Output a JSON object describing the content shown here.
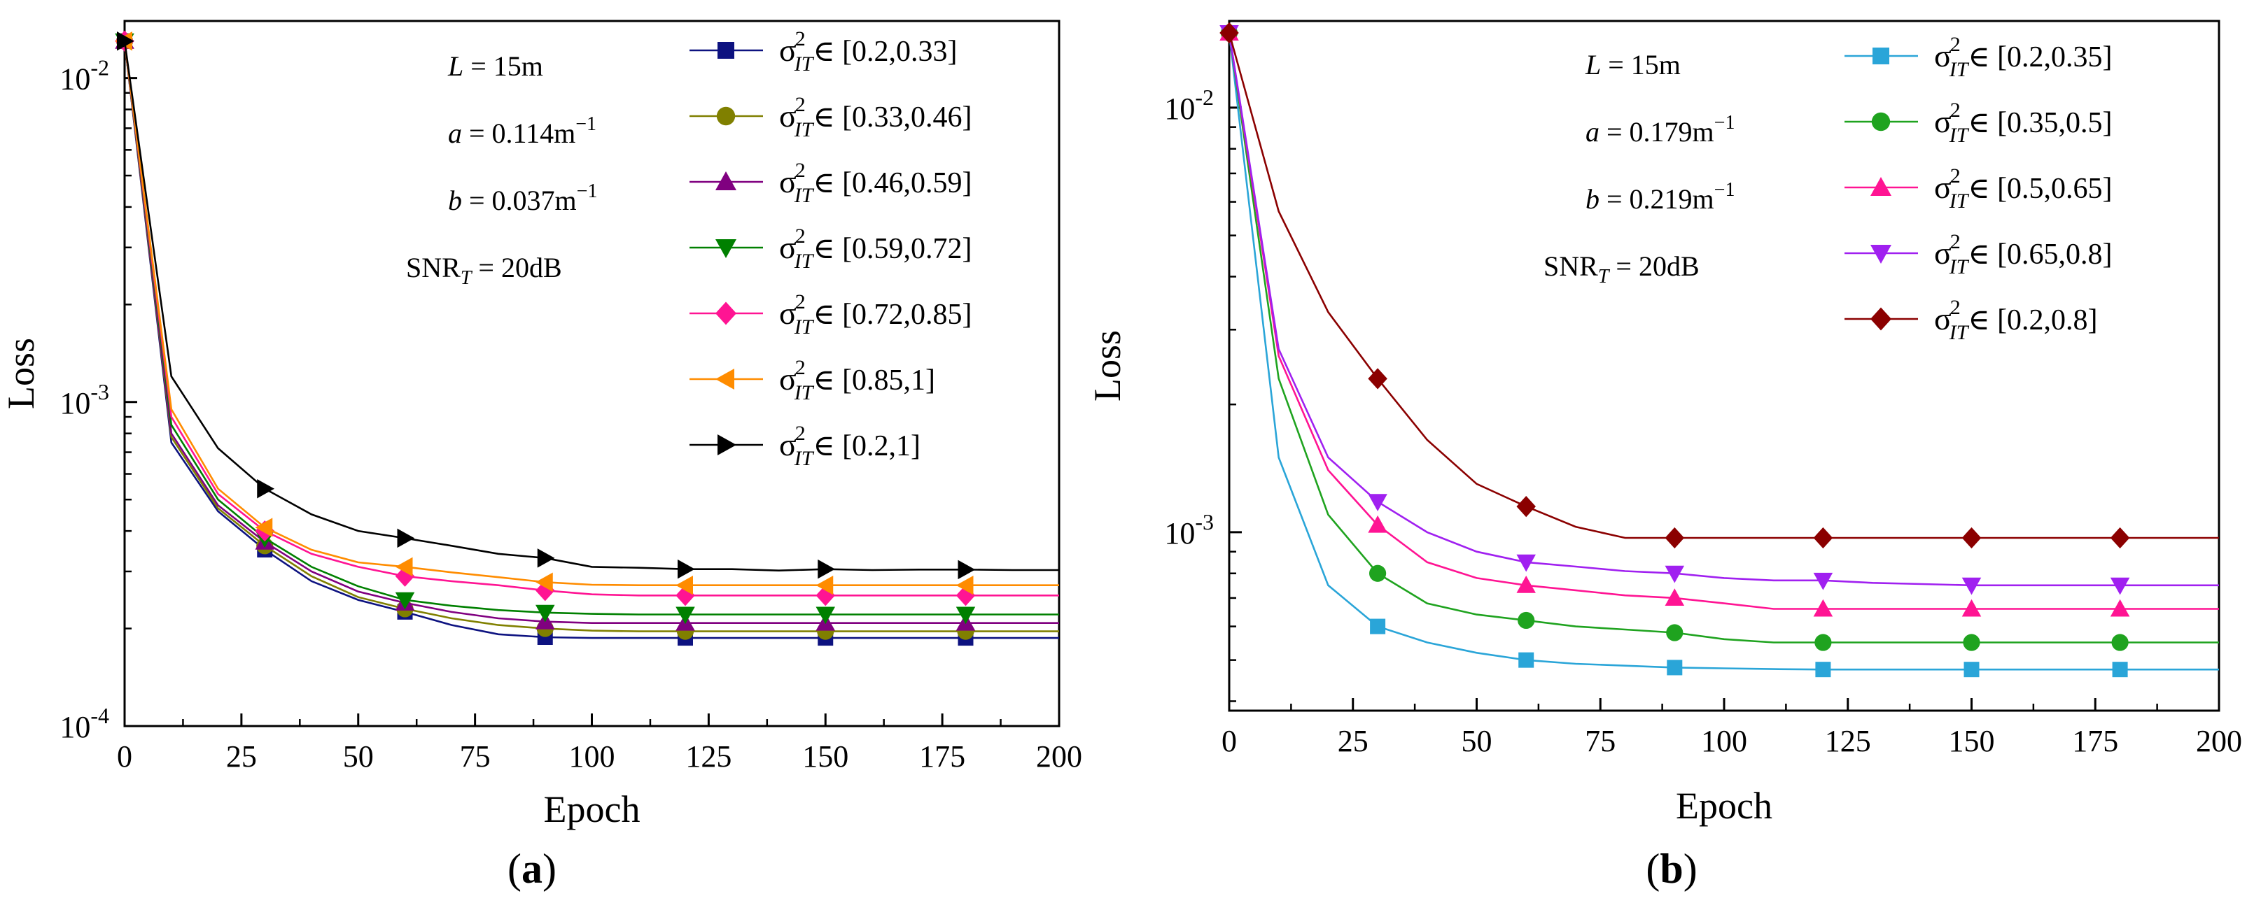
{
  "chart_data": [
    {
      "type": "line",
      "panel_label": "(a)",
      "panel_open": "(",
      "panel_letter": "a",
      "panel_close": ")",
      "xlabel": "Epoch",
      "ylabel": "Loss",
      "xlim": [
        0,
        200
      ],
      "ylim": [
        0.0001,
        0.015
      ],
      "yscale": "log",
      "grid": false,
      "legend_position": "top-right",
      "xticks": [
        "0",
        "25",
        "50",
        "75",
        "100",
        "125",
        "150",
        "175",
        "200"
      ],
      "yticks": [
        {
          "value": 0.0001,
          "base": "10",
          "exp": "-4"
        },
        {
          "value": 0.001,
          "base": "10",
          "exp": "-3"
        },
        {
          "value": 0.01,
          "base": "10",
          "exp": "-2"
        }
      ],
      "params": [
        {
          "pre": "",
          "var": "L",
          "sub": "",
          "post": " = 15m"
        },
        {
          "pre": "",
          "var": "a",
          "sub": "",
          "post": " = 0.114m",
          "sup": "−1"
        },
        {
          "pre": "",
          "var": "b",
          "sub": "",
          "post": " = 0.037m",
          "sup": "−1"
        },
        {
          "pre": "SNR",
          "var": "",
          "sub": "T",
          "post": " = 20dB"
        }
      ],
      "series": [
        {
          "name": "σ²IT∈ [0.2,0.33]",
          "range": "∈ [0.2,0.33]",
          "color": "#0d1280",
          "marker": "square",
          "x": [
            0,
            10,
            20,
            30,
            40,
            50,
            60,
            70,
            80,
            90,
            100,
            110,
            120,
            130,
            140,
            150,
            160,
            170,
            180,
            190,
            200
          ],
          "values": [
            0.013,
            0.00075,
            0.00046,
            0.00035,
            0.00028,
            0.000245,
            0.000225,
            0.000205,
            0.000192,
            0.000188,
            0.000187,
            0.000187,
            0.000187,
            0.000187,
            0.000187,
            0.000187,
            0.000187,
            0.000187,
            0.000187,
            0.000187,
            0.000187
          ],
          "marker_x": [
            0,
            30,
            60,
            90,
            120,
            150,
            180
          ]
        },
        {
          "name": "σ²IT∈ [0.33,0.46]",
          "range": "∈ [0.33,0.46]",
          "color": "#808000",
          "marker": "circle",
          "x": [
            0,
            10,
            20,
            30,
            40,
            50,
            60,
            70,
            80,
            90,
            100,
            110,
            120,
            130,
            140,
            150,
            160,
            170,
            180,
            190,
            200
          ],
          "values": [
            0.013,
            0.00078,
            0.00047,
            0.00036,
            0.00029,
            0.00025,
            0.00023,
            0.000215,
            0.000205,
            0.0002,
            0.000197,
            0.000196,
            0.000196,
            0.000196,
            0.000196,
            0.000196,
            0.000196,
            0.000196,
            0.000196,
            0.000196,
            0.000196
          ],
          "marker_x": [
            0,
            30,
            60,
            90,
            120,
            150,
            180
          ]
        },
        {
          "name": "σ²IT∈ [0.46,0.59]",
          "range": "∈ [0.46,0.59]",
          "color": "#800080",
          "marker": "triangle-up",
          "x": [
            0,
            10,
            20,
            30,
            40,
            50,
            60,
            70,
            80,
            90,
            100,
            110,
            120,
            130,
            140,
            150,
            160,
            170,
            180,
            190,
            200
          ],
          "values": [
            0.013,
            0.0008,
            0.00048,
            0.00037,
            0.0003,
            0.00026,
            0.00024,
            0.000225,
            0.000215,
            0.00021,
            0.000208,
            0.000208,
            0.000208,
            0.000208,
            0.000208,
            0.000208,
            0.000208,
            0.000208,
            0.000208,
            0.000208,
            0.000208
          ],
          "marker_x": [
            0,
            30,
            60,
            90,
            120,
            150,
            180
          ]
        },
        {
          "name": "σ²IT∈ [0.59,0.72]",
          "range": "∈ [0.59,0.72]",
          "color": "#008000",
          "marker": "triangle-down",
          "x": [
            0,
            10,
            20,
            30,
            40,
            50,
            60,
            70,
            80,
            90,
            100,
            110,
            120,
            130,
            140,
            150,
            160,
            170,
            180,
            190,
            200
          ],
          "values": [
            0.013,
            0.00085,
            0.0005,
            0.00038,
            0.00031,
            0.00027,
            0.000245,
            0.000235,
            0.000228,
            0.000224,
            0.000222,
            0.000221,
            0.000221,
            0.000221,
            0.000221,
            0.000221,
            0.000221,
            0.000221,
            0.000221,
            0.000221,
            0.000221
          ],
          "marker_x": [
            0,
            30,
            60,
            90,
            120,
            150,
            180
          ]
        },
        {
          "name": "σ²IT∈ [0.72,0.85]",
          "range": "∈ [0.72,0.85]",
          "color": "#ff1493",
          "marker": "diamond",
          "x": [
            0,
            10,
            20,
            30,
            40,
            50,
            60,
            70,
            80,
            90,
            100,
            110,
            120,
            130,
            140,
            150,
            160,
            170,
            180,
            190,
            200
          ],
          "values": [
            0.013,
            0.0009,
            0.00052,
            0.0004,
            0.00034,
            0.00031,
            0.00029,
            0.00028,
            0.000272,
            0.000262,
            0.000255,
            0.000253,
            0.000253,
            0.000253,
            0.000253,
            0.000253,
            0.000253,
            0.000253,
            0.000253,
            0.000253,
            0.000253
          ],
          "marker_x": [
            0,
            30,
            60,
            90,
            120,
            150,
            180
          ]
        },
        {
          "name": "σ²IT∈ [0.85,1]",
          "range": "∈ [0.85,1]",
          "color": "#ff8c00",
          "marker": "triangle-left",
          "x": [
            0,
            10,
            20,
            30,
            40,
            50,
            60,
            70,
            80,
            90,
            100,
            110,
            120,
            130,
            140,
            150,
            160,
            170,
            180,
            190,
            200
          ],
          "values": [
            0.013,
            0.00095,
            0.00054,
            0.00041,
            0.00035,
            0.00032,
            0.00031,
            0.000298,
            0.000288,
            0.000278,
            0.000273,
            0.000272,
            0.000272,
            0.000272,
            0.000272,
            0.000272,
            0.000272,
            0.000272,
            0.000272,
            0.000272,
            0.000272
          ],
          "marker_x": [
            0,
            30,
            60,
            90,
            120,
            150,
            180
          ]
        },
        {
          "name": "σ²IT∈ [0.2,1]",
          "range": "∈ [0.2,1]",
          "color": "#000000",
          "marker": "triangle-right",
          "x": [
            0,
            10,
            20,
            30,
            40,
            50,
            60,
            70,
            80,
            90,
            100,
            110,
            120,
            130,
            140,
            150,
            160,
            170,
            180,
            190,
            200
          ],
          "values": [
            0.013,
            0.0012,
            0.00072,
            0.00054,
            0.00045,
            0.0004,
            0.00038,
            0.00036,
            0.00034,
            0.00033,
            0.00031,
            0.000308,
            0.000305,
            0.000305,
            0.000302,
            0.000305,
            0.000303,
            0.000304,
            0.000304,
            0.000303,
            0.000303
          ],
          "marker_x": [
            0,
            30,
            60,
            90,
            120,
            150,
            180
          ]
        }
      ]
    },
    {
      "type": "line",
      "panel_label": "(b)",
      "panel_open": "(",
      "panel_letter": "b",
      "panel_close": ")",
      "xlabel": "Epoch",
      "ylabel": "Loss",
      "xlim": [
        0,
        200
      ],
      "ylim": [
        0.00038,
        0.016
      ],
      "yscale": "log",
      "grid": false,
      "legend_position": "top-right",
      "xticks": [
        "0",
        "25",
        "50",
        "75",
        "100",
        "125",
        "150",
        "175",
        "200"
      ],
      "yticks": [
        {
          "value": 0.001,
          "base": "10",
          "exp": "-3"
        },
        {
          "value": 0.01,
          "base": "10",
          "exp": "-2"
        }
      ],
      "params": [
        {
          "pre": "",
          "var": "L",
          "sub": "",
          "post": " = 15m"
        },
        {
          "pre": "",
          "var": "a",
          "sub": "",
          "post": " = 0.179m",
          "sup": "−1"
        },
        {
          "pre": "",
          "var": "b",
          "sub": "",
          "post": " = 0.219m",
          "sup": "−1"
        },
        {
          "pre": "SNR",
          "var": "",
          "sub": "T",
          "post": " = 20dB"
        }
      ],
      "series": [
        {
          "name": "σ²IT∈ [0.2,0.35]",
          "range": "∈ [0.2,0.35]",
          "color": "#2aa5d8",
          "marker": "square",
          "x": [
            0,
            10,
            20,
            30,
            40,
            50,
            60,
            70,
            80,
            90,
            100,
            110,
            120,
            130,
            140,
            150,
            160,
            170,
            180,
            190,
            200
          ],
          "values": [
            0.015,
            0.0015,
            0.00075,
            0.0006,
            0.00055,
            0.00052,
            0.0005,
            0.00049,
            0.000485,
            0.00048,
            0.000478,
            0.000476,
            0.000475,
            0.000475,
            0.000475,
            0.000475,
            0.000475,
            0.000475,
            0.000475,
            0.000475,
            0.000475
          ],
          "marker_x": [
            0,
            30,
            60,
            90,
            120,
            150,
            180
          ]
        },
        {
          "name": "σ²IT∈ [0.35,0.5]",
          "range": "∈ [0.35,0.5]",
          "color": "#1fa31f",
          "marker": "circle",
          "x": [
            0,
            10,
            20,
            30,
            40,
            50,
            60,
            70,
            80,
            90,
            100,
            110,
            120,
            130,
            140,
            150,
            160,
            170,
            180,
            190,
            200
          ],
          "values": [
            0.015,
            0.0023,
            0.0011,
            0.0008,
            0.00068,
            0.00064,
            0.00062,
            0.0006,
            0.00059,
            0.00058,
            0.00056,
            0.00055,
            0.00055,
            0.00055,
            0.00055,
            0.00055,
            0.00055,
            0.00055,
            0.00055,
            0.00055,
            0.00055
          ],
          "marker_x": [
            0,
            30,
            60,
            90,
            120,
            150,
            180
          ]
        },
        {
          "name": "σ²IT∈ [0.5,0.65]",
          "range": "∈ [0.5,0.65]",
          "color": "#ff1493",
          "marker": "triangle-up",
          "x": [
            0,
            10,
            20,
            30,
            40,
            50,
            60,
            70,
            80,
            90,
            100,
            110,
            120,
            130,
            140,
            150,
            160,
            170,
            180,
            190,
            200
          ],
          "values": [
            0.015,
            0.0026,
            0.0014,
            0.00104,
            0.00085,
            0.00078,
            0.00075,
            0.00073,
            0.00071,
            0.0007,
            0.00068,
            0.00066,
            0.00066,
            0.00066,
            0.00066,
            0.00066,
            0.00066,
            0.00066,
            0.00066,
            0.00066,
            0.00066
          ],
          "marker_x": [
            0,
            30,
            60,
            90,
            120,
            150,
            180
          ]
        },
        {
          "name": "σ²IT∈ [0.65,0.8]",
          "range": "∈ [0.65,0.8]",
          "color": "#a020f0",
          "marker": "triangle-down",
          "x": [
            0,
            10,
            20,
            30,
            40,
            50,
            60,
            70,
            80,
            90,
            100,
            110,
            120,
            130,
            140,
            150,
            160,
            170,
            180,
            190,
            200
          ],
          "values": [
            0.015,
            0.0027,
            0.0015,
            0.00118,
            0.001,
            0.0009,
            0.00085,
            0.00083,
            0.00081,
            0.0008,
            0.00078,
            0.00077,
            0.00077,
            0.00076,
            0.000755,
            0.00075,
            0.00075,
            0.00075,
            0.00075,
            0.00075,
            0.00075
          ],
          "marker_x": [
            0,
            30,
            60,
            90,
            120,
            150,
            180
          ]
        },
        {
          "name": "σ²IT∈ [0.2,0.8]",
          "range": "∈ [0.2,0.8]",
          "color": "#8b0000",
          "marker": "diamond",
          "x": [
            0,
            10,
            20,
            30,
            40,
            50,
            60,
            70,
            80,
            90,
            100,
            110,
            120,
            130,
            140,
            150,
            160,
            170,
            180,
            190,
            200
          ],
          "values": [
            0.015,
            0.0057,
            0.0033,
            0.0023,
            0.00165,
            0.0013,
            0.00115,
            0.00103,
            0.00097,
            0.00097,
            0.00097,
            0.00097,
            0.00097,
            0.00097,
            0.00097,
            0.00097,
            0.00097,
            0.00097,
            0.00097,
            0.00097,
            0.00097
          ],
          "marker_x": [
            0,
            30,
            60,
            90,
            120,
            150,
            180
          ]
        }
      ]
    }
  ]
}
